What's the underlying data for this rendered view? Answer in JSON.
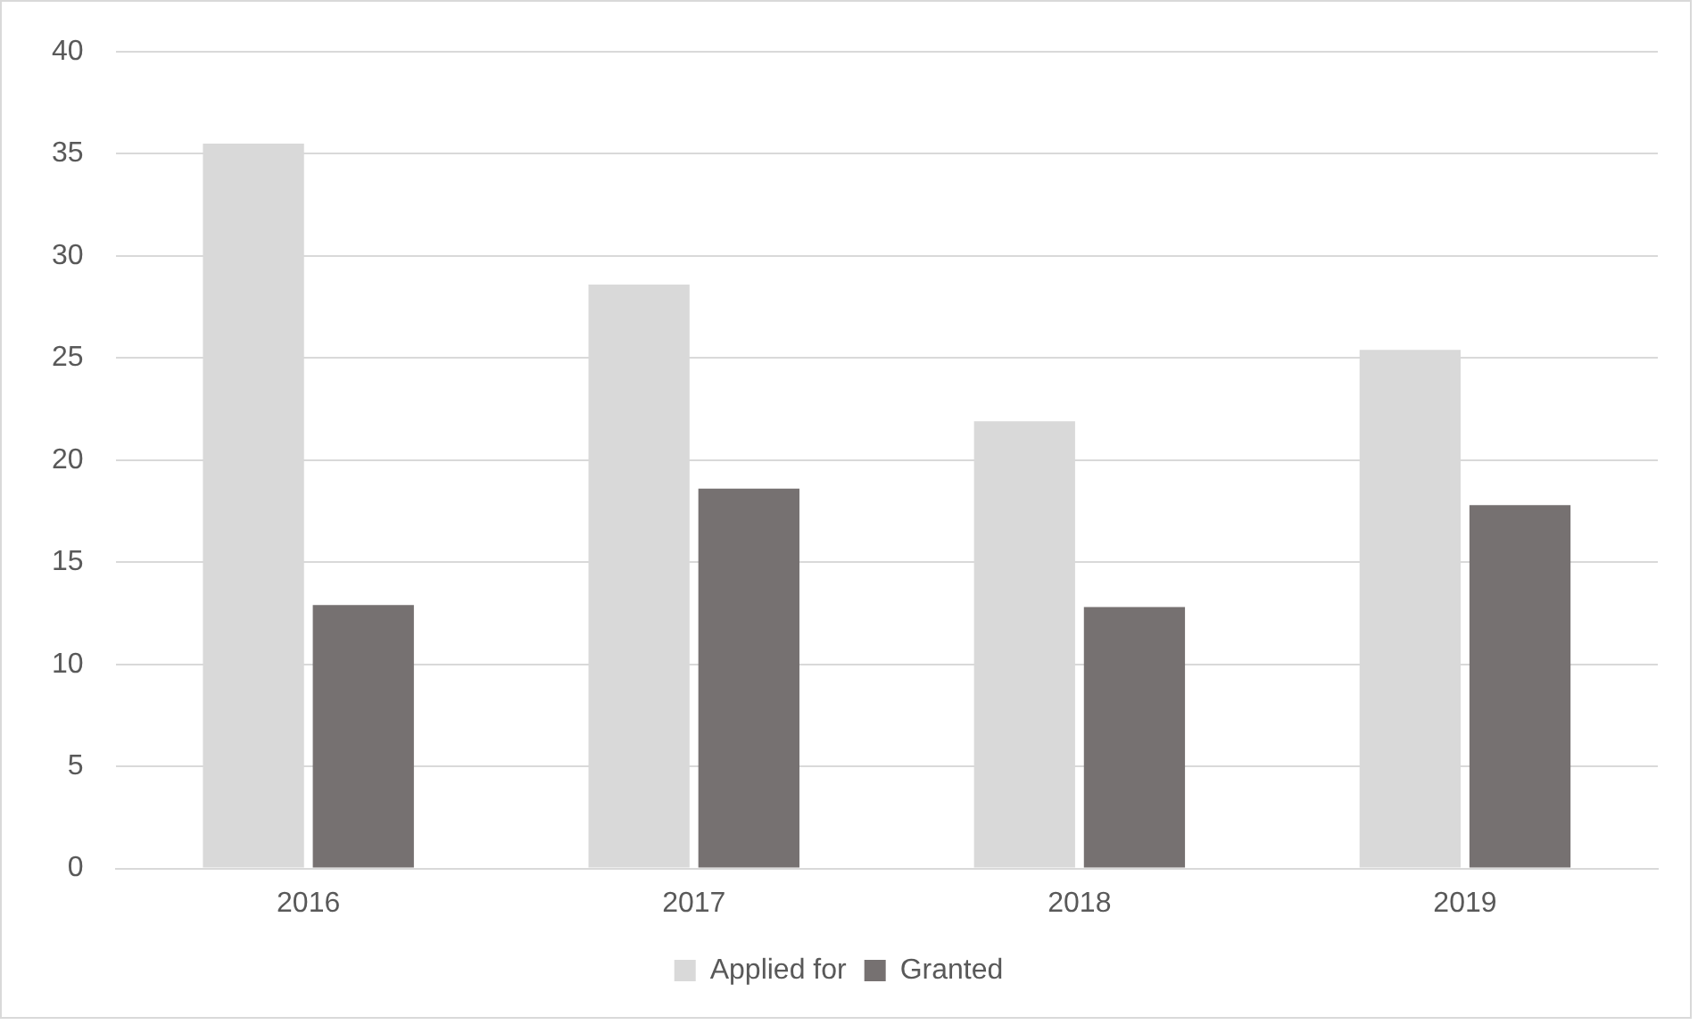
{
  "chart_data": {
    "type": "bar",
    "categories": [
      "2016",
      "2017",
      "2018",
      "2019"
    ],
    "series": [
      {
        "name": "Applied for",
        "color": "#d9d9d9",
        "values": [
          35.5,
          28.6,
          21.9,
          25.4
        ]
      },
      {
        "name": "Granted",
        "color": "#767171",
        "values": [
          12.9,
          18.6,
          12.8,
          17.8
        ]
      }
    ],
    "ylim": [
      0,
      40
    ],
    "yticks": [
      0,
      5,
      10,
      15,
      20,
      25,
      30,
      35,
      40
    ],
    "grid": "y",
    "legend": "bottom"
  }
}
